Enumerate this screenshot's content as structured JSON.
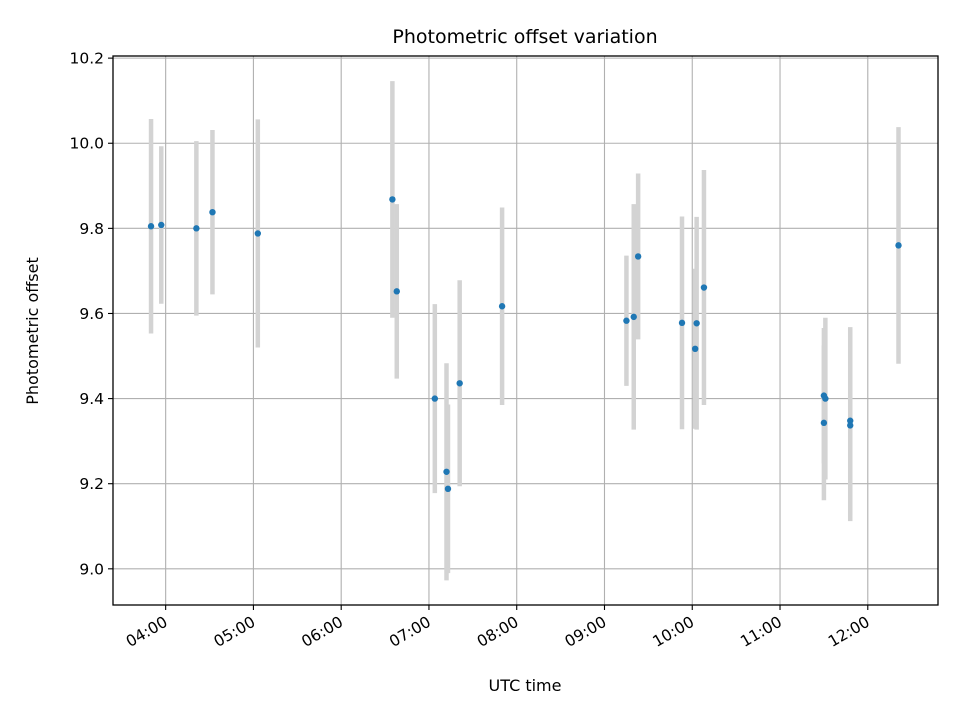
{
  "chart_data": {
    "type": "scatter",
    "title": "Photometric offset variation",
    "xlabel": "UTC time",
    "ylabel": "Photometric offset",
    "x_tick_labels": [
      "04:00",
      "05:00",
      "06:00",
      "07:00",
      "08:00",
      "09:00",
      "10:00",
      "11:00",
      "12:00"
    ],
    "y_tick_labels": [
      "9.0",
      "9.2",
      "9.4",
      "9.6",
      "9.8",
      "10.0",
      "10.2"
    ],
    "y_ticks": [
      9.0,
      9.2,
      9.4,
      9.6,
      9.8,
      10.0,
      10.2
    ],
    "xlim": [
      "03:24",
      "12:48"
    ],
    "ylim": [
      8.915,
      10.205
    ],
    "grid": true,
    "colors": {
      "point": "#1f77b4",
      "errorbar": "#d3d3d3",
      "grid": "#b0b0b0"
    },
    "points": [
      {
        "x": "03:50",
        "y": 9.805,
        "yerr": 0.252
      },
      {
        "x": "03:57",
        "y": 9.808,
        "yerr": 0.185
      },
      {
        "x": "04:21",
        "y": 9.8,
        "yerr": 0.205
      },
      {
        "x": "04:32",
        "y": 9.838,
        "yerr": 0.193
      },
      {
        "x": "05:03",
        "y": 9.788,
        "yerr": 0.268
      },
      {
        "x": "06:35",
        "y": 9.868,
        "yerr": 0.278
      },
      {
        "x": "06:38",
        "y": 9.652,
        "yerr": 0.205
      },
      {
        "x": "07:04",
        "y": 9.4,
        "yerr": 0.222
      },
      {
        "x": "07:12",
        "y": 9.228,
        "yerr": 0.255
      },
      {
        "x": "07:13",
        "y": 9.188,
        "yerr": 0.198
      },
      {
        "x": "07:21",
        "y": 9.436,
        "yerr": 0.242
      },
      {
        "x": "07:50",
        "y": 9.617,
        "yerr": 0.232
      },
      {
        "x": "09:15",
        "y": 9.583,
        "yerr": 0.153
      },
      {
        "x": "09:20",
        "y": 9.592,
        "yerr": 0.265
      },
      {
        "x": "09:23",
        "y": 9.734,
        "yerr": 0.195
      },
      {
        "x": "09:53",
        "y": 9.578,
        "yerr": 0.25
      },
      {
        "x": "10:02",
        "y": 9.517,
        "yerr": 0.188
      },
      {
        "x": "10:03",
        "y": 9.577,
        "yerr": 0.25
      },
      {
        "x": "10:08",
        "y": 9.661,
        "yerr": 0.276
      },
      {
        "x": "11:30",
        "y": 9.407,
        "yerr": 0.159
      },
      {
        "x": "11:30",
        "y": 9.343,
        "yerr": 0.182
      },
      {
        "x": "11:31",
        "y": 9.4,
        "yerr": 0.19
      },
      {
        "x": "11:48",
        "y": 9.348,
        "yerr": 0.22
      },
      {
        "x": "11:48",
        "y": 9.337,
        "yerr": 0.225
      },
      {
        "x": "12:21",
        "y": 9.76,
        "yerr": 0.278
      }
    ]
  }
}
